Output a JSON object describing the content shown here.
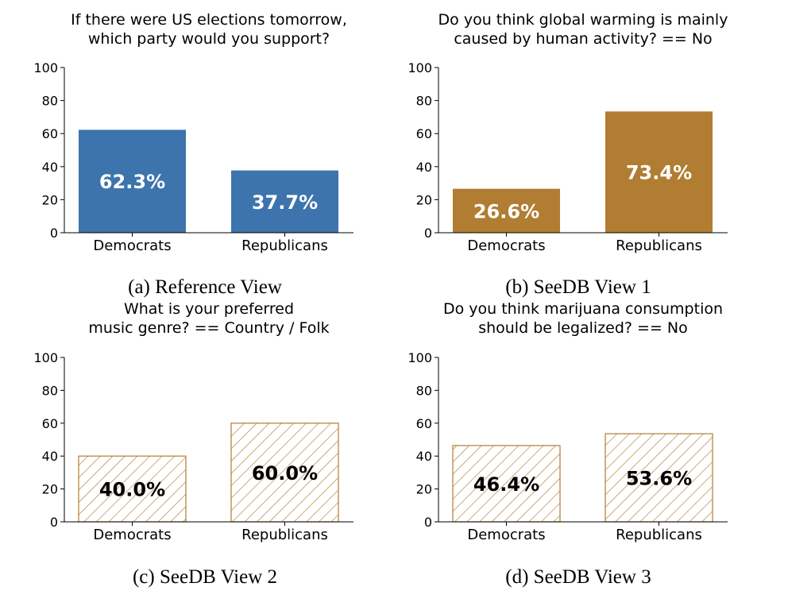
{
  "chart_data": [
    {
      "type": "bar",
      "title": "If there were US elections tomorrow,\nwhich party would you support?",
      "caption": "(a) Reference View",
      "categories": [
        "Democrats",
        "Republicans"
      ],
      "values": [
        62.3,
        37.7
      ],
      "value_labels": [
        "62.3%",
        "37.7%"
      ],
      "ylim": [
        0,
        100
      ],
      "yticks": [
        "0",
        "20",
        "40",
        "60",
        "80",
        "100"
      ],
      "style": "solid",
      "bar_color": "#3d74ad",
      "label_color": "#ffffff"
    },
    {
      "type": "bar",
      "title": "Do you think global warming is mainly\ncaused by human activity? == No",
      "caption": "(b) SeeDB View 1",
      "categories": [
        "Democrats",
        "Republicans"
      ],
      "values": [
        26.6,
        73.4
      ],
      "value_labels": [
        "26.6%",
        "73.4%"
      ],
      "ylim": [
        0,
        100
      ],
      "yticks": [
        "0",
        "20",
        "40",
        "60",
        "80",
        "100"
      ],
      "style": "solid",
      "bar_color": "#b07d32",
      "label_color": "#ffffff"
    },
    {
      "type": "bar",
      "title": "What is your preferred\nmusic genre? == Country / Folk",
      "caption": "(c) SeeDB View 2",
      "categories": [
        "Democrats",
        "Republicans"
      ],
      "values": [
        40.0,
        60.0
      ],
      "value_labels": [
        "40.0%",
        "60.0%"
      ],
      "ylim": [
        0,
        100
      ],
      "yticks": [
        "0",
        "20",
        "40",
        "60",
        "80",
        "100"
      ],
      "style": "hatched",
      "bar_color": "#b07d32",
      "label_color": "#000000"
    },
    {
      "type": "bar",
      "title": "Do you think marijuana consumption\nshould be legalized? == No",
      "caption": "(d) SeeDB View 3",
      "categories": [
        "Democrats",
        "Republicans"
      ],
      "values": [
        46.4,
        53.6
      ],
      "value_labels": [
        "46.4%",
        "53.6%"
      ],
      "ylim": [
        0,
        100
      ],
      "yticks": [
        "0",
        "20",
        "40",
        "60",
        "80",
        "100"
      ],
      "style": "hatched",
      "bar_color": "#b07d32",
      "label_color": "#000000"
    }
  ]
}
